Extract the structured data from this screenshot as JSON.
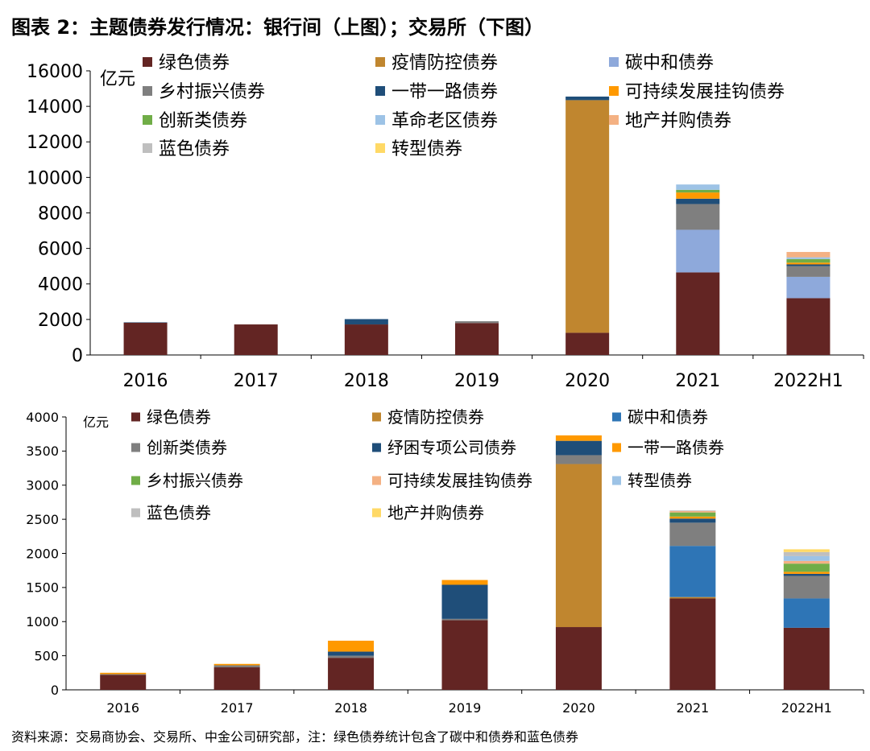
{
  "title": "图表 2：主题债券发行情况：银行间（上图）；交易所（下图）",
  "source": "资料来源：交易商协会、交易所、中金公司研究部，注：绿色债券统计包含了碳中和债券和蓝色债券",
  "chart_data": [
    {
      "type": "bar",
      "stacked": true,
      "ylabel": "亿元",
      "ylim": [
        0,
        16000
      ],
      "yticks": [
        0,
        2000,
        4000,
        6000,
        8000,
        10000,
        12000,
        14000,
        16000
      ],
      "grid": false,
      "legend": "top-left",
      "categories": [
        "2016",
        "2017",
        "2018",
        "2019",
        "2020",
        "2021",
        "2022H1"
      ],
      "series": [
        {
          "name": "绿色债券",
          "color": "#632523",
          "values": [
            1820,
            1720,
            1720,
            1800,
            1250,
            4650,
            3200
          ]
        },
        {
          "name": "疫情防控债券",
          "color": "#C0862F",
          "values": [
            0,
            0,
            0,
            0,
            13100,
            0,
            0
          ]
        },
        {
          "name": "碳中和债券",
          "color": "#8EA9DB",
          "values": [
            0,
            0,
            0,
            0,
            0,
            2400,
            1200
          ]
        },
        {
          "name": "乡村振兴债券",
          "color": "#7F7F7F",
          "values": [
            0,
            0,
            0,
            100,
            0,
            1450,
            600
          ]
        },
        {
          "name": "一带一路债券",
          "color": "#1F4E79",
          "values": [
            20,
            0,
            300,
            0,
            200,
            300,
            100
          ]
        },
        {
          "name": "可持续发展挂钩债券",
          "color": "#FF9900",
          "values": [
            0,
            0,
            0,
            0,
            0,
            350,
            100
          ]
        },
        {
          "name": "创新类债券",
          "color": "#70AD47",
          "values": [
            0,
            0,
            0,
            0,
            0,
            150,
            200
          ]
        },
        {
          "name": "革命老区债券",
          "color": "#9DC3E6",
          "values": [
            0,
            0,
            0,
            0,
            0,
            300,
            100
          ]
        },
        {
          "name": "地产并购债券",
          "color": "#F4B183",
          "values": [
            0,
            0,
            0,
            0,
            0,
            0,
            300
          ]
        },
        {
          "name": "蓝色债券",
          "color": "#BFBFBF",
          "values": [
            0,
            0,
            0,
            0,
            0,
            0,
            0
          ]
        },
        {
          "name": "转型债券",
          "color": "#FFD966",
          "values": [
            0,
            0,
            0,
            0,
            0,
            0,
            0
          ]
        }
      ]
    },
    {
      "type": "bar",
      "stacked": true,
      "ylabel": "亿元",
      "ylim": [
        0,
        4000
      ],
      "yticks": [
        0,
        500,
        1000,
        1500,
        2000,
        2500,
        3000,
        3500,
        4000
      ],
      "grid": false,
      "legend": "top-left",
      "categories": [
        "2016",
        "2017",
        "2018",
        "2019",
        "2020",
        "2021",
        "2022H1"
      ],
      "series": [
        {
          "name": "绿色债券",
          "color": "#632523",
          "values": [
            220,
            330,
            470,
            1020,
            920,
            1340,
            910
          ]
        },
        {
          "name": "疫情防控债券",
          "color": "#C0862F",
          "values": [
            0,
            0,
            0,
            0,
            2390,
            20,
            0
          ]
        },
        {
          "name": "碳中和债券",
          "color": "#2E75B6",
          "values": [
            0,
            0,
            0,
            0,
            0,
            750,
            430
          ]
        },
        {
          "name": "创新类债券",
          "color": "#7F7F7F",
          "values": [
            10,
            30,
            30,
            20,
            130,
            340,
            330
          ]
        },
        {
          "name": "纾困专项公司债券",
          "color": "#1F4E79",
          "values": [
            0,
            0,
            60,
            500,
            210,
            60,
            30
          ]
        },
        {
          "name": "一带一路债券",
          "color": "#FF9900",
          "values": [
            20,
            20,
            160,
            70,
            80,
            30,
            30
          ]
        },
        {
          "name": "乡村振兴债券",
          "color": "#70AD47",
          "values": [
            0,
            0,
            0,
            0,
            0,
            60,
            120
          ]
        },
        {
          "name": "可持续发展挂钩债券",
          "color": "#F4B183",
          "values": [
            0,
            0,
            0,
            0,
            0,
            20,
            40
          ]
        },
        {
          "name": "转型债券",
          "color": "#9DC3E6",
          "values": [
            0,
            0,
            0,
            0,
            0,
            0,
            70
          ]
        },
        {
          "name": "蓝色债券",
          "color": "#BFBFBF",
          "values": [
            0,
            0,
            0,
            0,
            0,
            10,
            60
          ]
        },
        {
          "name": "地产并购债券",
          "color": "#FFD966",
          "values": [
            0,
            0,
            0,
            0,
            0,
            0,
            40
          ]
        }
      ]
    }
  ]
}
